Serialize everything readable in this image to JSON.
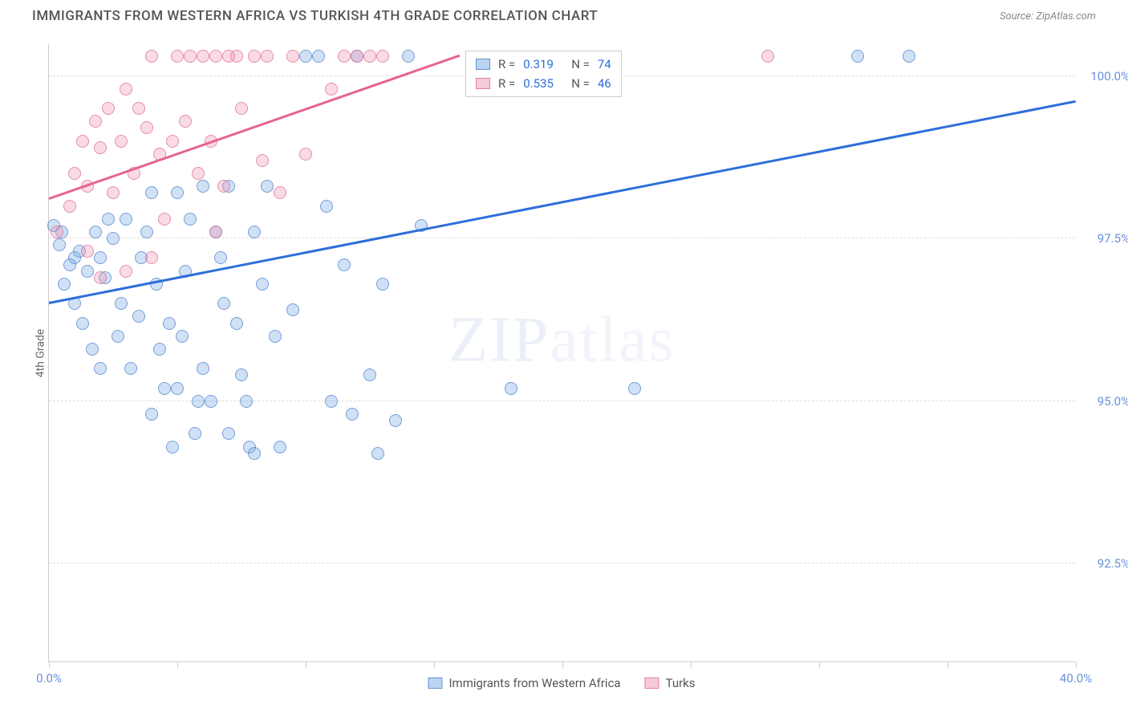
{
  "title": "IMMIGRANTS FROM WESTERN AFRICA VS TURKISH 4TH GRADE CORRELATION CHART",
  "source": "Source: ZipAtlas.com",
  "watermark": "ZIPatlas",
  "chart": {
    "type": "scatter",
    "xlabel": "",
    "ylabel": "4th Grade",
    "xlim": [
      0.0,
      40.0
    ],
    "ylim": [
      91.0,
      100.5
    ],
    "xtick_label_min": "0.0%",
    "xtick_label_max": "40.0%",
    "ytick_labels": [
      "92.5%",
      "95.0%",
      "97.5%",
      "100.0%"
    ],
    "ytick_values": [
      92.5,
      95.0,
      97.5,
      100.0
    ],
    "xtick_positions": [
      0,
      5,
      10,
      15,
      20,
      25,
      30,
      35,
      40
    ],
    "grid_color": "#dddddd",
    "background_color": "#ffffff",
    "axis_color": "#cccccc",
    "marker_size": 16,
    "series": [
      {
        "name": "Immigrants from Western Africa",
        "color_fill": "rgba(120,170,230,0.35)",
        "color_stroke": "rgba(80,130,200,0.7)",
        "trend_color": "#2e6ed9",
        "R": 0.319,
        "N": 74,
        "trend": {
          "x1": 0.0,
          "y1": 96.5,
          "x2": 40.0,
          "y2": 99.6
        },
        "points": [
          [
            0.2,
            97.7
          ],
          [
            0.5,
            97.6
          ],
          [
            0.4,
            97.4
          ],
          [
            1.0,
            97.2
          ],
          [
            0.8,
            97.1
          ],
          [
            0.6,
            96.8
          ],
          [
            1.2,
            97.3
          ],
          [
            1.5,
            97.0
          ],
          [
            1.8,
            97.6
          ],
          [
            2.0,
            97.2
          ],
          [
            2.2,
            96.9
          ],
          [
            2.5,
            97.5
          ],
          [
            2.8,
            96.5
          ],
          [
            3.0,
            97.8
          ],
          [
            3.5,
            96.3
          ],
          [
            3.8,
            97.6
          ],
          [
            4.0,
            98.2
          ],
          [
            4.2,
            96.8
          ],
          [
            4.5,
            95.2
          ],
          [
            4.8,
            94.3
          ],
          [
            5.0,
            98.2
          ],
          [
            5.2,
            96.0
          ],
          [
            5.5,
            97.8
          ],
          [
            5.8,
            95.0
          ],
          [
            6.0,
            98.3
          ],
          [
            6.5,
            97.6
          ],
          [
            6.8,
            96.5
          ],
          [
            7.0,
            98.3
          ],
          [
            7.5,
            95.4
          ],
          [
            7.8,
            94.3
          ],
          [
            8.0,
            97.6
          ],
          [
            8.5,
            98.3
          ],
          [
            8.8,
            96.0
          ],
          [
            9.0,
            94.3
          ],
          [
            9.5,
            96.4
          ],
          [
            10.0,
            100.3
          ],
          [
            10.5,
            100.3
          ],
          [
            10.8,
            98.0
          ],
          [
            11.0,
            95.0
          ],
          [
            11.5,
            97.1
          ],
          [
            11.8,
            94.8
          ],
          [
            12.0,
            100.3
          ],
          [
            12.5,
            95.4
          ],
          [
            12.8,
            94.2
          ],
          [
            13.0,
            96.8
          ],
          [
            13.5,
            94.7
          ],
          [
            14.0,
            100.3
          ],
          [
            14.5,
            97.7
          ],
          [
            18.0,
            95.2
          ],
          [
            22.8,
            95.2
          ],
          [
            31.5,
            100.3
          ],
          [
            33.5,
            100.3
          ],
          [
            1.0,
            96.5
          ],
          [
            1.3,
            96.2
          ],
          [
            1.7,
            95.8
          ],
          [
            2.0,
            95.5
          ],
          [
            2.3,
            97.8
          ],
          [
            2.7,
            96.0
          ],
          [
            3.2,
            95.5
          ],
          [
            3.6,
            97.2
          ],
          [
            4.0,
            94.8
          ],
          [
            4.3,
            95.8
          ],
          [
            4.7,
            96.2
          ],
          [
            5.0,
            95.2
          ],
          [
            5.3,
            97.0
          ],
          [
            5.7,
            94.5
          ],
          [
            6.0,
            95.5
          ],
          [
            6.3,
            95.0
          ],
          [
            6.7,
            97.2
          ],
          [
            7.0,
            94.5
          ],
          [
            7.3,
            96.2
          ],
          [
            7.7,
            95.0
          ],
          [
            8.0,
            94.2
          ],
          [
            8.3,
            96.8
          ]
        ]
      },
      {
        "name": "Turks",
        "color_fill": "rgba(240,150,180,0.35)",
        "color_stroke": "rgba(220,110,150,0.7)",
        "trend_color": "#e6638f",
        "R": 0.535,
        "N": 46,
        "trend": {
          "x1": 0.0,
          "y1": 98.1,
          "x2": 16.0,
          "y2": 100.3
        },
        "points": [
          [
            0.3,
            97.6
          ],
          [
            0.8,
            98.0
          ],
          [
            1.0,
            98.5
          ],
          [
            1.3,
            99.0
          ],
          [
            1.5,
            98.3
          ],
          [
            1.8,
            99.3
          ],
          [
            2.0,
            98.9
          ],
          [
            2.3,
            99.5
          ],
          [
            2.5,
            98.2
          ],
          [
            2.8,
            99.0
          ],
          [
            3.0,
            99.8
          ],
          [
            3.3,
            98.5
          ],
          [
            3.5,
            99.5
          ],
          [
            3.8,
            99.2
          ],
          [
            4.0,
            100.3
          ],
          [
            4.3,
            98.8
          ],
          [
            4.5,
            97.8
          ],
          [
            4.8,
            99.0
          ],
          [
            5.0,
            100.3
          ],
          [
            5.3,
            99.3
          ],
          [
            5.5,
            100.3
          ],
          [
            5.8,
            98.5
          ],
          [
            6.0,
            100.3
          ],
          [
            6.3,
            99.0
          ],
          [
            6.5,
            100.3
          ],
          [
            6.8,
            98.3
          ],
          [
            7.0,
            100.3
          ],
          [
            7.3,
            100.3
          ],
          [
            7.5,
            99.5
          ],
          [
            8.0,
            100.3
          ],
          [
            8.3,
            98.7
          ],
          [
            8.5,
            100.3
          ],
          [
            9.0,
            98.2
          ],
          [
            9.5,
            100.3
          ],
          [
            10.0,
            98.8
          ],
          [
            11.0,
            99.8
          ],
          [
            11.5,
            100.3
          ],
          [
            12.0,
            100.3
          ],
          [
            12.5,
            100.3
          ],
          [
            13.0,
            100.3
          ],
          [
            1.5,
            97.3
          ],
          [
            2.0,
            96.9
          ],
          [
            3.0,
            97.0
          ],
          [
            4.0,
            97.2
          ],
          [
            6.5,
            97.6
          ],
          [
            28.0,
            100.3
          ]
        ]
      }
    ],
    "legend_box": {
      "rows": [
        {
          "swatch": "blue",
          "r_label": "R =",
          "r_value": "0.319",
          "n_label": "N =",
          "n_value": "74"
        },
        {
          "swatch": "pink",
          "r_label": "R =",
          "r_value": "0.535",
          "n_label": "N =",
          "n_value": "46"
        }
      ]
    },
    "bottom_legend": [
      {
        "swatch": "blue",
        "label": "Immigrants from Western Africa"
      },
      {
        "swatch": "pink",
        "label": "Turks"
      }
    ]
  }
}
